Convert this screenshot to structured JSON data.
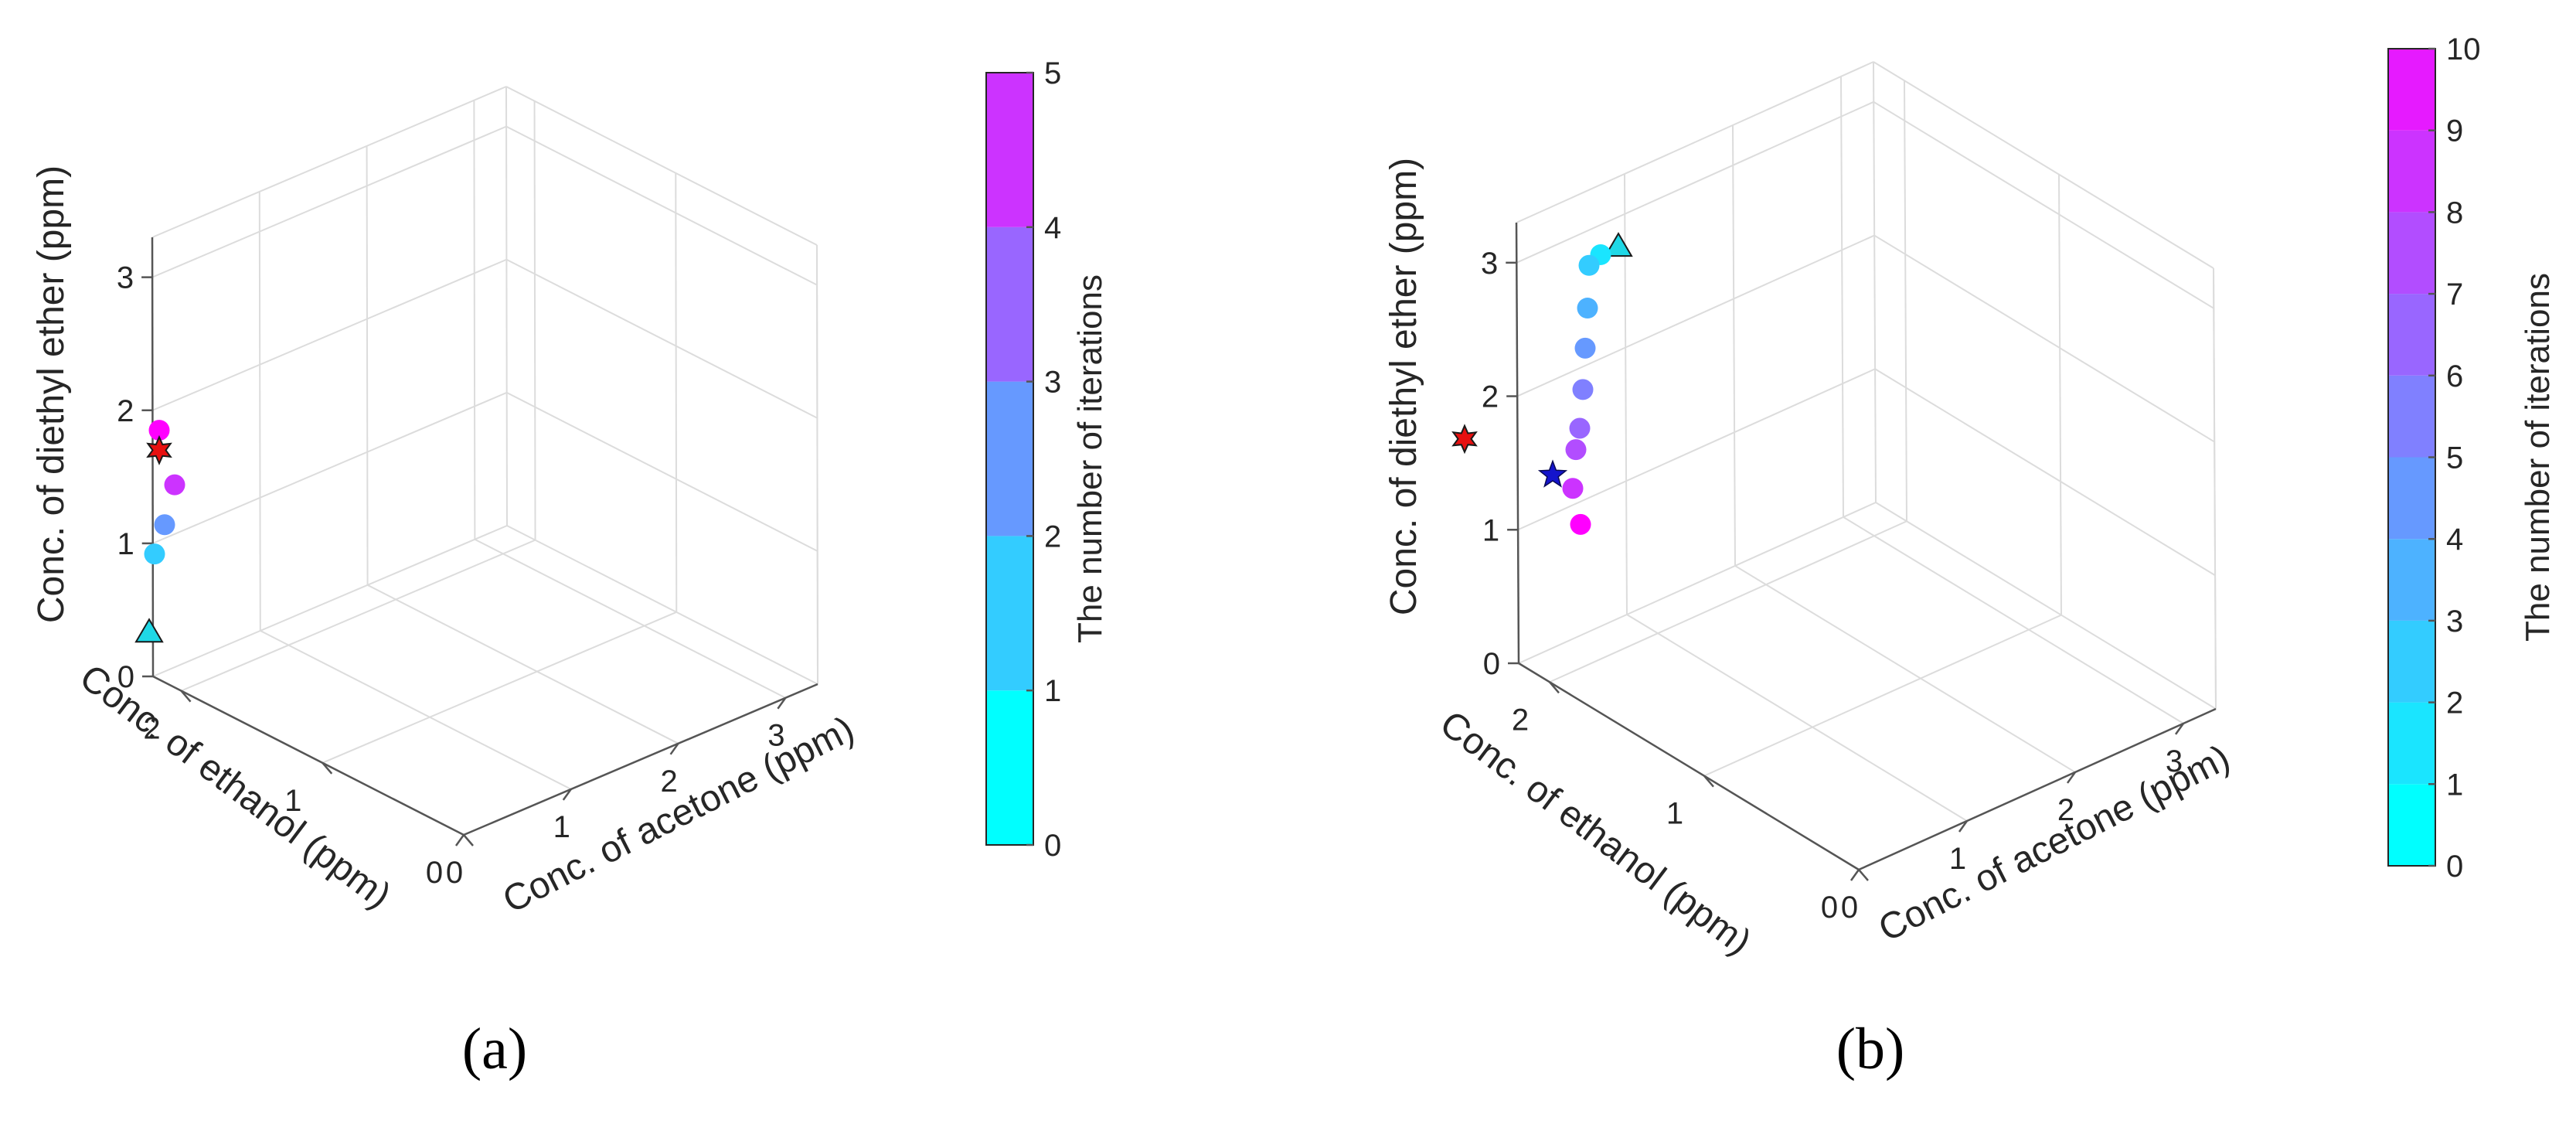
{
  "chart_data": [
    {
      "type": "scatter3d",
      "panel_label": "(a)",
      "xlabel": "Conc. of acetone (ppm)",
      "ylabel": "Conc. of ethanol (ppm)",
      "zlabel": "Conc. of diethyl ether (ppm)",
      "x_ticks": [
        "0",
        "1",
        "2",
        "3"
      ],
      "y_ticks": [
        "0",
        "1",
        "2"
      ],
      "z_ticks": [
        "0",
        "1",
        "2",
        "3"
      ],
      "xlim": [
        0,
        3.3
      ],
      "ylim": [
        0,
        2.2
      ],
      "zlim": [
        0,
        3.3
      ],
      "colorbar": {
        "label": "The number of iterations",
        "ticks": [
          "0",
          "1",
          "2",
          "3",
          "4",
          "5"
        ],
        "colors": [
          "#00ffff",
          "#33ccff",
          "#6699ff",
          "#9966ff",
          "#cc33ff",
          "#ff00ff"
        ]
      },
      "start_point": {
        "iteration": 0,
        "color": "#1fd8e6",
        "proj": [
          -0.05,
          0.33
        ]
      },
      "target": {
        "color": "#e81010",
        "proj": [
          0.08,
          1.7
        ]
      },
      "iterations": [
        {
          "iteration": 1,
          "color": "#33ccff",
          "proj": [
            0.02,
            0.92
          ]
        },
        {
          "iteration": 2,
          "color": "#6699ff",
          "proj": [
            0.15,
            1.14
          ]
        },
        {
          "iteration": 3,
          "color": "#cc33ff",
          "proj": [
            0.28,
            1.44
          ]
        },
        {
          "iteration": 4,
          "color": "#ff00ff",
          "proj": [
            0.08,
            1.85
          ]
        }
      ]
    },
    {
      "type": "scatter3d",
      "panel_label": "(b)",
      "xlabel": "Conc. of acetone (ppm)",
      "ylabel": "Conc. of ethanol (ppm)",
      "zlabel": "Conc. of diethyl ether (ppm)",
      "x_ticks": [
        "0",
        "1",
        "2",
        "3"
      ],
      "y_ticks": [
        "0",
        "1",
        "2"
      ],
      "z_ticks": [
        "0",
        "1",
        "2",
        "3"
      ],
      "xlim": [
        0,
        3.3
      ],
      "ylim": [
        0,
        2.2
      ],
      "zlim": [
        0,
        3.3
      ],
      "colorbar": {
        "label": "The number of iterations",
        "ticks": [
          "0",
          "1",
          "2",
          "3",
          "4",
          "5",
          "6",
          "7",
          "8",
          "9",
          "10"
        ],
        "colors": [
          "#00ffff",
          "#1ae5ff",
          "#33ccff",
          "#4db2ff",
          "#6699ff",
          "#8080ff",
          "#9966ff",
          "#b24dff",
          "#cc33ff",
          "#e61aff",
          "#ff00ff"
        ]
      },
      "start_point": {
        "iteration": 0,
        "color": "#1fd8e6",
        "proj": [
          1.29,
          3.12
        ]
      },
      "target": {
        "color": "#e81010",
        "proj": [
          -0.7,
          1.68
        ]
      },
      "best_estimate": {
        "color": "#1414cc",
        "proj": [
          0.44,
          1.41
        ]
      },
      "iterations": [
        {
          "iteration": 1,
          "color": "#1ae5ff",
          "proj": [
            1.06,
            3.06
          ]
        },
        {
          "iteration": 2,
          "color": "#33ccff",
          "proj": [
            0.91,
            2.98
          ]
        },
        {
          "iteration": 3,
          "color": "#4db2ff",
          "proj": [
            0.89,
            2.66
          ]
        },
        {
          "iteration": 4,
          "color": "#6699ff",
          "proj": [
            0.86,
            2.36
          ]
        },
        {
          "iteration": 5,
          "color": "#8080ff",
          "proj": [
            0.83,
            2.05
          ]
        },
        {
          "iteration": 6,
          "color": "#9966ff",
          "proj": [
            0.79,
            1.76
          ]
        },
        {
          "iteration": 7,
          "color": "#b24dff",
          "proj": [
            0.74,
            1.6
          ]
        },
        {
          "iteration": 8,
          "color": "#cc33ff",
          "proj": [
            0.7,
            1.31
          ]
        },
        {
          "iteration": 9,
          "color": "#ff00ff",
          "proj": [
            0.8,
            1.04
          ]
        }
      ]
    }
  ]
}
